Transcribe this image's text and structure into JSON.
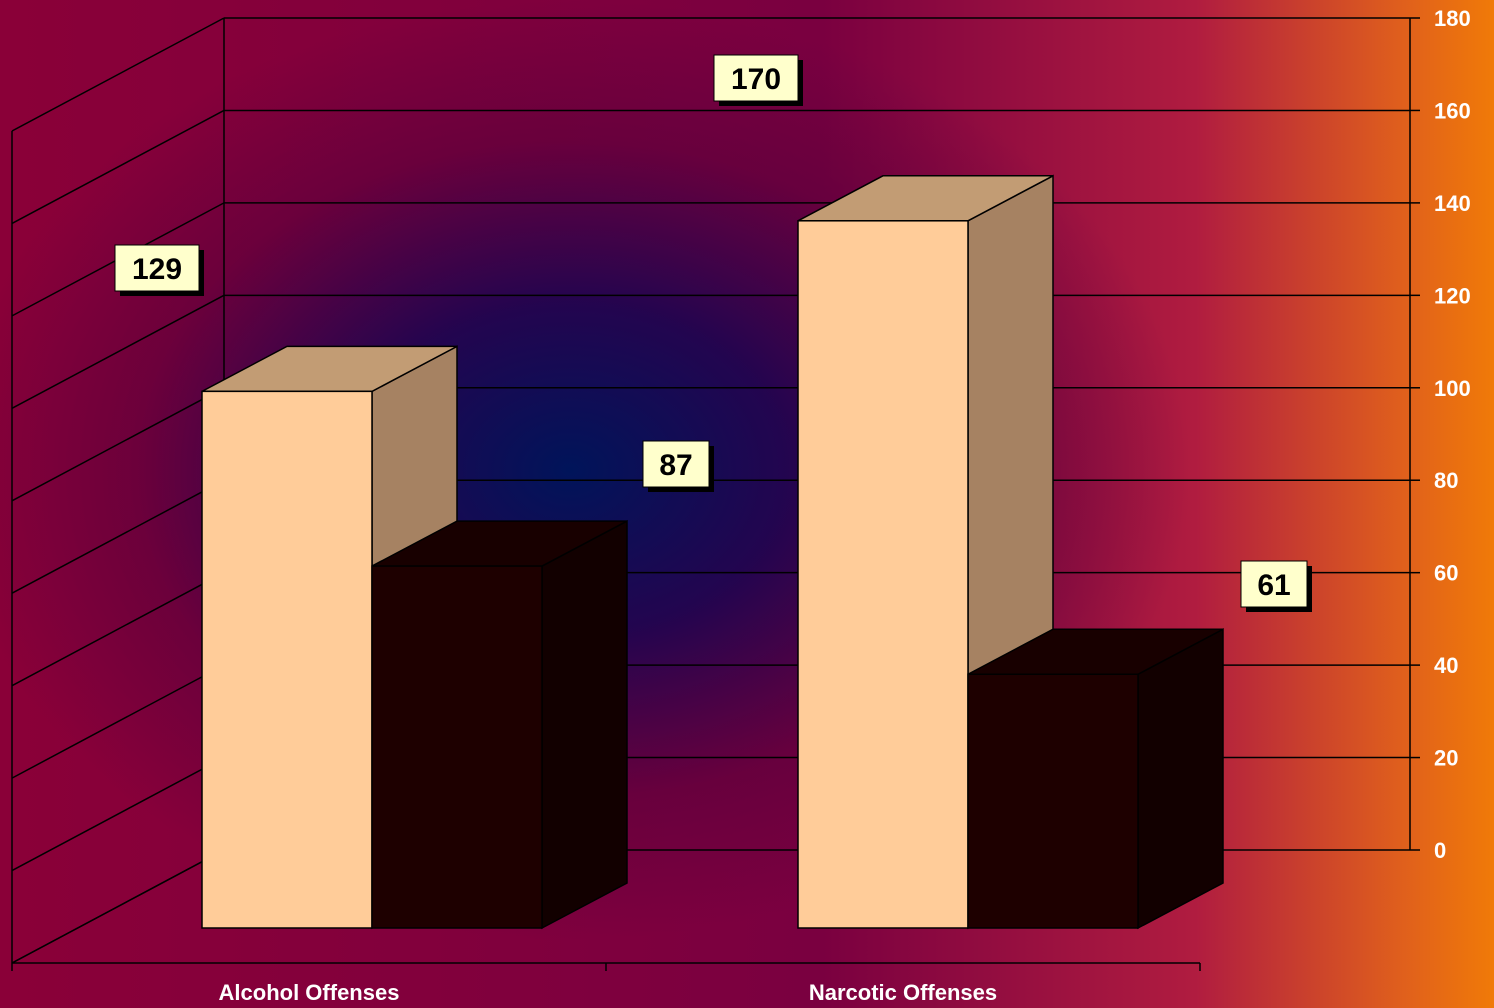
{
  "chart_data": {
    "type": "bar",
    "categories": [
      "Alcohol Offenses",
      "Narcotic Offenses"
    ],
    "series": [
      {
        "values": [
          129,
          170
        ],
        "color": "#ffcc99"
      },
      {
        "values": [
          87,
          61
        ],
        "color": "#1e0000"
      }
    ],
    "data_labels": [
      "129",
      "170",
      "87",
      "61"
    ],
    "ylim": [
      0,
      180
    ],
    "yticks": [
      0,
      20,
      40,
      60,
      80,
      100,
      120,
      140,
      160,
      180
    ],
    "y_axis_side": "right",
    "grid": true,
    "legend": "none",
    "colors": {
      "gridline": "#000000",
      "label_box": "#ffffcc",
      "front_side_light": "#ffcc99",
      "side_light": "#a68262",
      "top_light": "#c29c74",
      "front_dark": "#1e0000",
      "side_dark": "#120000",
      "top_dark": "#180000"
    }
  }
}
